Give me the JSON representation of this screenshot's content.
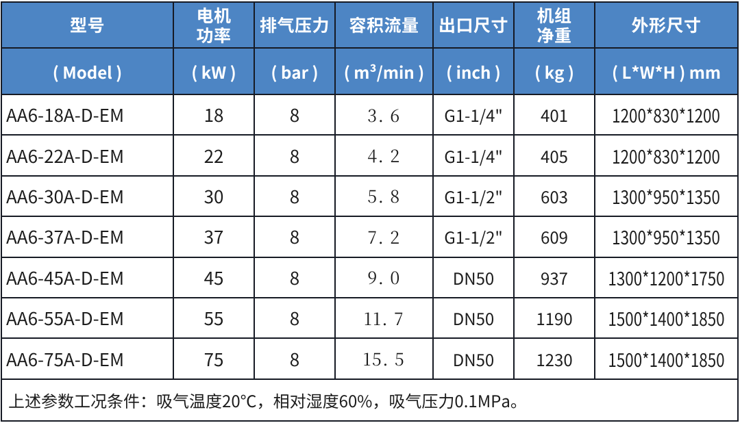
{
  "table": {
    "columns": [
      {
        "key": "model",
        "title_lines": [
          "型号"
        ],
        "unit": "( Model )"
      },
      {
        "key": "power",
        "title_lines": [
          "电机",
          "功率"
        ],
        "unit": "( kW )"
      },
      {
        "key": "pressure",
        "title_lines": [
          "排气压力"
        ],
        "unit": "( bar )"
      },
      {
        "key": "flow",
        "title_lines": [
          "容积流量"
        ],
        "unit": "( m³/min )"
      },
      {
        "key": "outlet",
        "title_lines": [
          "出口尺寸"
        ],
        "unit": "( inch )"
      },
      {
        "key": "weight",
        "title_lines": [
          "机组",
          "净重"
        ],
        "unit": "( kg )"
      },
      {
        "key": "dims",
        "title_lines": [
          "外形尺寸"
        ],
        "unit": "( L*W*H ) mm"
      }
    ],
    "rows": [
      [
        "AA6-18A-D-EM",
        "18",
        "8",
        "3. 6",
        "G1-1/4\"",
        "401",
        "1200*830*1200"
      ],
      [
        "AA6-22A-D-EM",
        "22",
        "8",
        "4. 2",
        "G1-1/4\"",
        "405",
        "1200*830*1200"
      ],
      [
        "AA6-30A-D-EM",
        "30",
        "8",
        "5. 8",
        "G1-1/2\"",
        "603",
        "1300*950*1350"
      ],
      [
        "AA6-37A-D-EM",
        "37",
        "8",
        "7. 2",
        "G1-1/2\"",
        "609",
        "1300*950*1350"
      ],
      [
        "AA6-45A-D-EM",
        "45",
        "8",
        "9. 0",
        "DN50",
        "937",
        "1300*1200*1750"
      ],
      [
        "AA6-55A-D-EM",
        "55",
        "8",
        "11. 7",
        "DN50",
        "1190",
        "1500*1400*1850"
      ],
      [
        "AA6-75A-D-EM",
        "75",
        "8",
        "15. 5",
        "DN50",
        "1230",
        "1500*1400*1850"
      ]
    ],
    "note": "上述参数工况条件：吸气温度20℃，相对湿度60%，吸气压力0.1MPa。"
  },
  "colors": {
    "header_blue": "#4d85c4",
    "grid_line": "#161a24",
    "header_text": "#ffffff",
    "body_text": "#1c1c1c",
    "background": "#ffffff"
  }
}
